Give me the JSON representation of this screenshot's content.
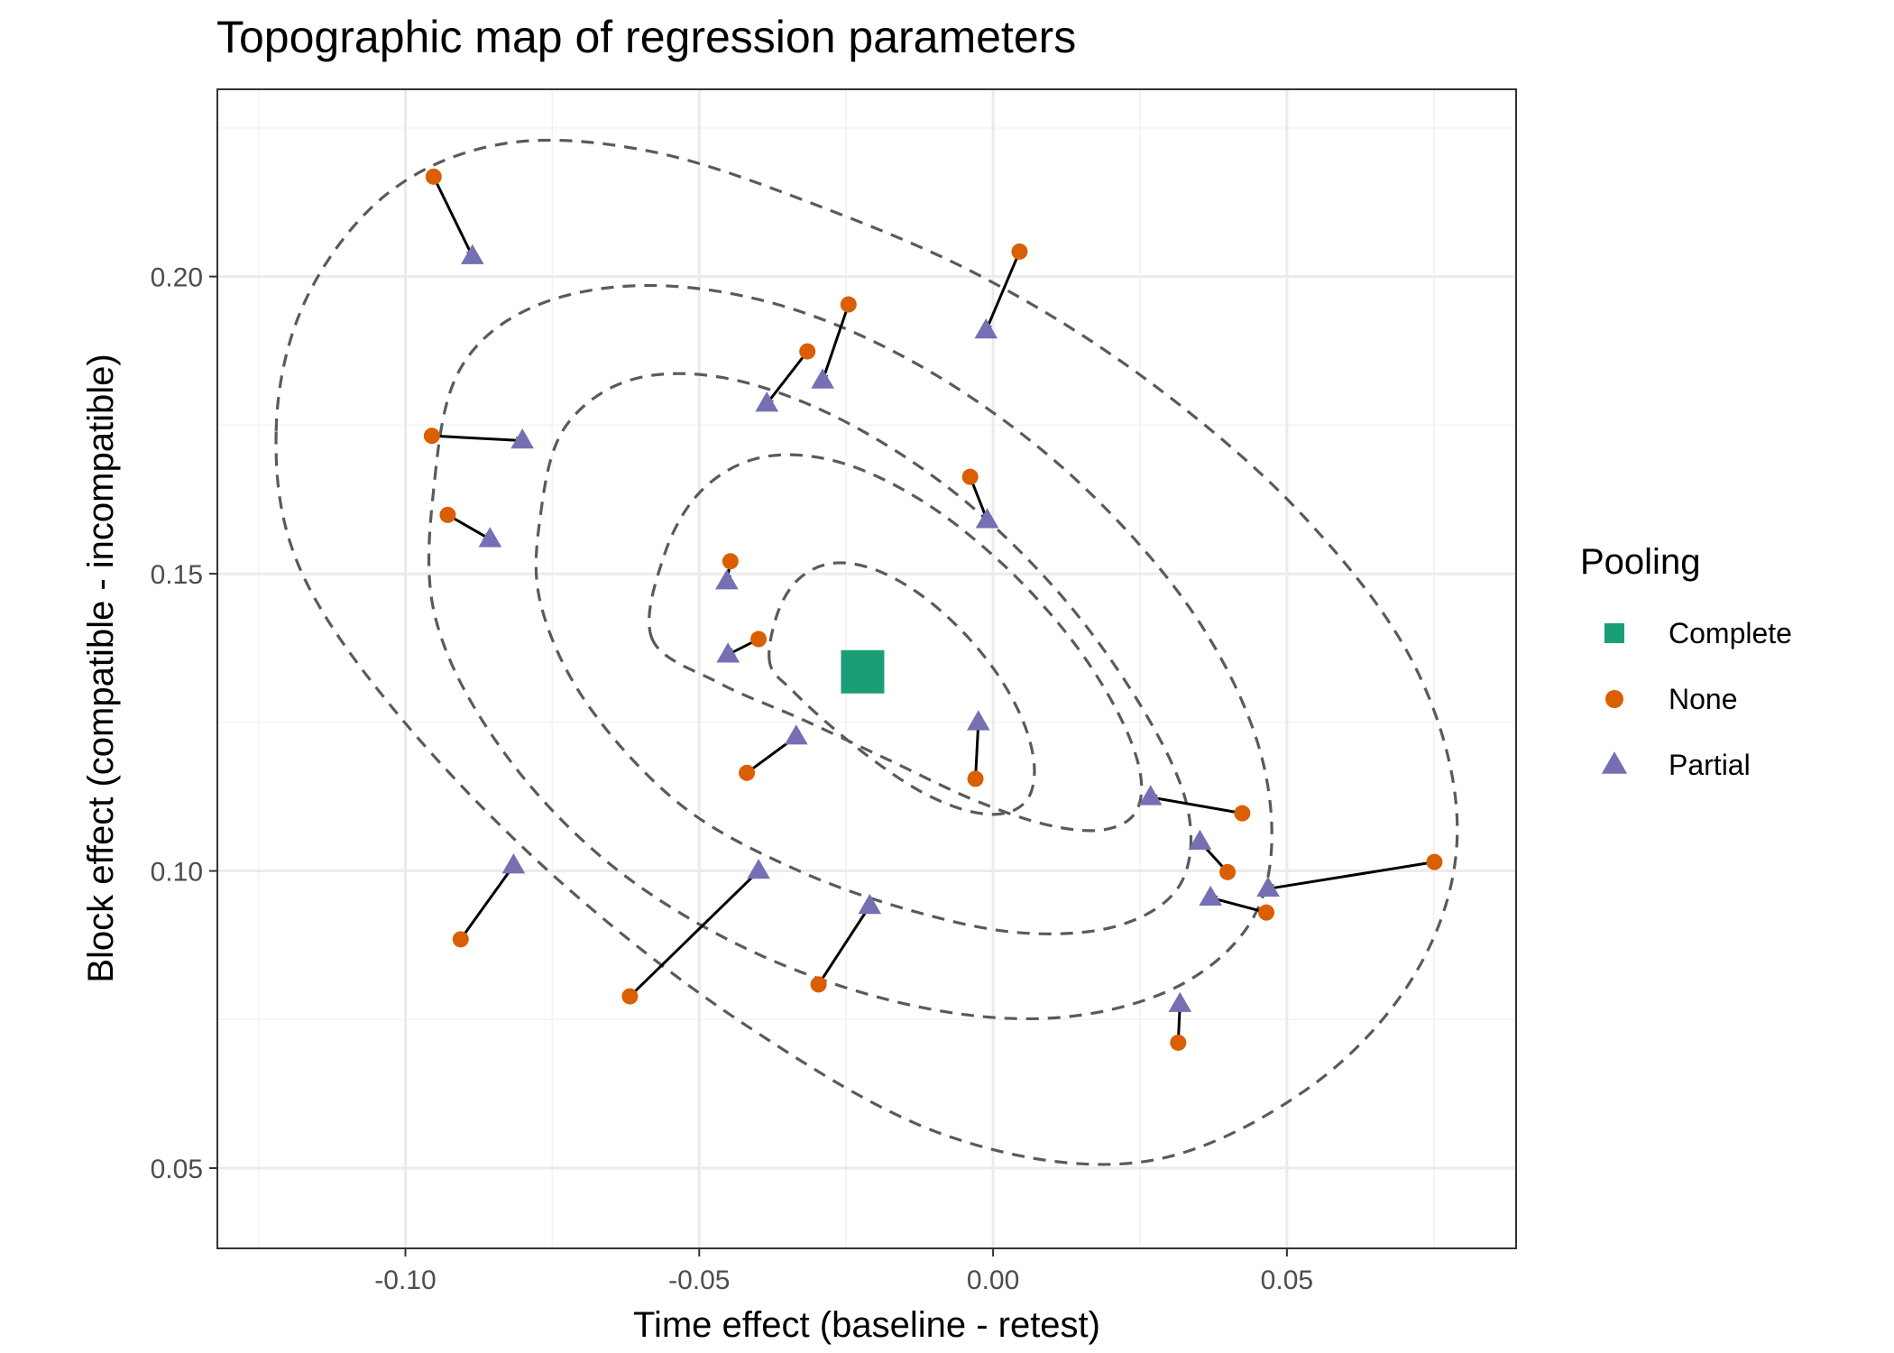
{
  "chart_data": {
    "type": "scatter",
    "title": "Topographic map of regression parameters",
    "xlabel": "Time effect (baseline - retest)",
    "ylabel": "Block effect (compatible - incompatible)",
    "xlim": [
      -0.132,
      0.089
    ],
    "ylim": [
      0.0365,
      0.2315
    ],
    "x_ticks": [
      -0.1,
      -0.05,
      0.0,
      0.05
    ],
    "x_tick_labels": [
      "-0.10",
      "-0.05",
      "0.00",
      "0.05"
    ],
    "y_ticks": [
      0.05,
      0.1,
      0.15,
      0.2
    ],
    "y_tick_labels": [
      "0.05",
      "0.10",
      "0.15",
      "0.20"
    ],
    "grid": true,
    "legend": {
      "title": "Pooling",
      "position": "right",
      "entries": [
        {
          "label": "Complete",
          "shape": "square",
          "color": "#1b9e77"
        },
        {
          "label": "None",
          "shape": "circle",
          "color": "#d95f02"
        },
        {
          "label": "Partial",
          "shape": "triangle",
          "color": "#7570b3"
        }
      ]
    },
    "series": [
      {
        "name": "Complete",
        "shape": "square",
        "color": "#1b9e77",
        "points": [
          {
            "x": -0.0222,
            "y": 0.1335
          }
        ]
      },
      {
        "name": "None",
        "shape": "circle",
        "color": "#d95f02",
        "points": [
          {
            "x": -0.0952,
            "y": 0.2168
          },
          {
            "x": 0.0045,
            "y": 0.2042
          },
          {
            "x": -0.0246,
            "y": 0.1953
          },
          {
            "x": -0.0316,
            "y": 0.1874
          },
          {
            "x": -0.0955,
            "y": 0.1732
          },
          {
            "x": -0.0928,
            "y": 0.1599
          },
          {
            "x": -0.0039,
            "y": 0.1663
          },
          {
            "x": -0.0447,
            "y": 0.1521
          },
          {
            "x": -0.0399,
            "y": 0.139
          },
          {
            "x": -0.0419,
            "y": 0.1165
          },
          {
            "x": -0.003,
            "y": 0.1155
          },
          {
            "x": 0.0424,
            "y": 0.1097
          },
          {
            "x": 0.0399,
            "y": 0.0998
          },
          {
            "x": 0.0465,
            "y": 0.093
          },
          {
            "x": 0.0751,
            "y": 0.1015
          },
          {
            "x": -0.0906,
            "y": 0.0885
          },
          {
            "x": -0.0618,
            "y": 0.0789
          },
          {
            "x": -0.0297,
            "y": 0.0809
          },
          {
            "x": 0.0315,
            "y": 0.0711
          }
        ]
      },
      {
        "name": "Partial",
        "shape": "triangle",
        "color": "#7570b3",
        "points": [
          {
            "x": -0.0886,
            "y": 0.2034
          },
          {
            "x": -0.0012,
            "y": 0.1909
          },
          {
            "x": -0.029,
            "y": 0.1825
          },
          {
            "x": -0.0385,
            "y": 0.1786
          },
          {
            "x": -0.0801,
            "y": 0.1724
          },
          {
            "x": -0.0856,
            "y": 0.1558
          },
          {
            "x": -0.001,
            "y": 0.159
          },
          {
            "x": -0.0453,
            "y": 0.1487
          },
          {
            "x": -0.0451,
            "y": 0.1364
          },
          {
            "x": -0.0335,
            "y": 0.1226
          },
          {
            "x": -0.0025,
            "y": 0.125
          },
          {
            "x": 0.0268,
            "y": 0.1124
          },
          {
            "x": 0.0352,
            "y": 0.1049
          },
          {
            "x": 0.037,
            "y": 0.0955
          },
          {
            "x": 0.0468,
            "y": 0.097
          },
          {
            "x": -0.0816,
            "y": 0.1009
          },
          {
            "x": -0.0399,
            "y": 0.1
          },
          {
            "x": -0.021,
            "y": 0.0941
          },
          {
            "x": 0.0318,
            "y": 0.0776
          }
        ]
      }
    ],
    "arrows_from": "None",
    "arrows_to": "Partial",
    "contours": [
      [
        [
          -0.038,
          0.135
        ],
        [
          -0.0368,
          0.143
        ],
        [
          -0.0333,
          0.1489
        ],
        [
          -0.0278,
          0.1517
        ],
        [
          -0.021,
          0.151
        ],
        [
          -0.0134,
          0.1472
        ],
        [
          -0.0059,
          0.141
        ],
        [
          0.0006,
          0.1333
        ],
        [
          0.0051,
          0.1252
        ],
        [
          0.007,
          0.1178
        ],
        [
          0.006,
          0.1123
        ],
        [
          0.002,
          0.1097
        ],
        [
          -0.0043,
          0.1101
        ],
        [
          -0.012,
          0.1132
        ],
        [
          -0.0202,
          0.1185
        ],
        [
          -0.0279,
          0.1246
        ],
        [
          -0.0341,
          0.1303
        ]
      ],
      [
        [
          -0.058,
          0.139
        ],
        [
          -0.056,
          0.153
        ],
        [
          -0.0498,
          0.1638
        ],
        [
          -0.0398,
          0.1695
        ],
        [
          -0.027,
          0.169
        ],
        [
          -0.0128,
          0.1627
        ],
        [
          0.001,
          0.1522
        ],
        [
          0.0128,
          0.1396
        ],
        [
          0.021,
          0.1271
        ],
        [
          0.025,
          0.1167
        ],
        [
          0.0242,
          0.1098
        ],
        [
          0.0186,
          0.1069
        ],
        [
          0.009,
          0.1078
        ],
        [
          -0.0034,
          0.112
        ],
        [
          -0.0176,
          0.1186
        ],
        [
          -0.0325,
          0.1255
        ],
        [
          -0.0466,
          0.1316
        ]
      ],
      [
        [
          -0.077,
          0.16
        ],
        [
          -0.073,
          0.1744
        ],
        [
          -0.062,
          0.1825
        ],
        [
          -0.046,
          0.183
        ],
        [
          -0.027,
          0.1765
        ],
        [
          -0.007,
          0.164
        ],
        [
          0.011,
          0.147
        ],
        [
          0.025,
          0.128
        ],
        [
          0.033,
          0.111
        ],
        [
          0.032,
          0.098
        ],
        [
          0.022,
          0.091
        ],
        [
          0.006,
          0.0895
        ],
        [
          -0.012,
          0.0928
        ],
        [
          -0.033,
          0.1
        ],
        [
          -0.053,
          0.111
        ],
        [
          -0.069,
          0.128
        ],
        [
          -0.077,
          0.145
        ]
      ],
      [
        [
          -0.095,
          0.166
        ],
        [
          -0.0906,
          0.1846
        ],
        [
          -0.078,
          0.195
        ],
        [
          -0.058,
          0.1985
        ],
        [
          -0.034,
          0.1945
        ],
        [
          -0.009,
          0.183
        ],
        [
          0.015,
          0.165
        ],
        [
          0.035,
          0.142
        ],
        [
          0.046,
          0.118
        ],
        [
          0.046,
          0.096
        ],
        [
          0.034,
          0.082
        ],
        [
          0.013,
          0.0755
        ],
        [
          -0.012,
          0.077
        ],
        [
          -0.04,
          0.086
        ],
        [
          -0.065,
          0.101
        ],
        [
          -0.084,
          0.121
        ],
        [
          -0.095,
          0.143
        ]
      ],
      [
        [
          -0.122,
          0.174
        ],
        [
          -0.117,
          0.196
        ],
        [
          -0.103,
          0.214
        ],
        [
          -0.083,
          0.2224
        ],
        [
          -0.058,
          0.221
        ],
        [
          -0.03,
          0.212
        ],
        [
          -0.001,
          0.1995
        ],
        [
          0.027,
          0.182
        ],
        [
          0.053,
          0.1595
        ],
        [
          0.072,
          0.134
        ],
        [
          0.079,
          0.107
        ],
        [
          0.072,
          0.083
        ],
        [
          0.053,
          0.063
        ],
        [
          0.025,
          0.051
        ],
        [
          -0.008,
          0.0555
        ],
        [
          -0.042,
          0.074
        ],
        [
          -0.074,
          0.0985
        ],
        [
          -0.101,
          0.126
        ],
        [
          -0.118,
          0.151
        ]
      ]
    ]
  }
}
